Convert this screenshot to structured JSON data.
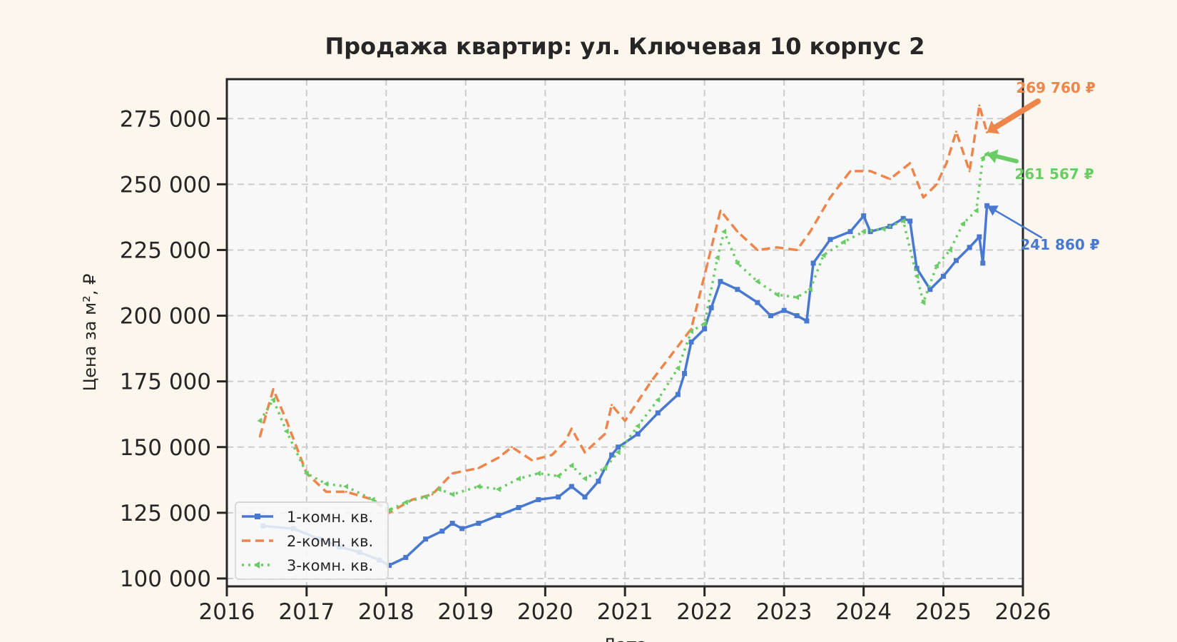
{
  "chart_data": {
    "type": "line",
    "title": "Продажа квартир: ул. Ключевая 10 корпус 2",
    "xlabel": "Дата",
    "ylabel": "Цена за м², ₽",
    "x_range": [
      "2016-01-01",
      "2026-01-01"
    ],
    "ylim": [
      97000,
      290000
    ],
    "x_ticks": [
      "2016",
      "2017",
      "2018",
      "2019",
      "2020",
      "2021",
      "2022",
      "2023",
      "2024",
      "2025",
      "2026"
    ],
    "y_ticks": [
      {
        "value": 100000,
        "label": "100 000"
      },
      {
        "value": 125000,
        "label": "125 000"
      },
      {
        "value": 150000,
        "label": "150 000"
      },
      {
        "value": 175000,
        "label": "175 000"
      },
      {
        "value": 200000,
        "label": "200 000"
      },
      {
        "value": 225000,
        "label": "225 000"
      },
      {
        "value": 250000,
        "label": "250 000"
      },
      {
        "value": 275000,
        "label": "275 000"
      }
    ],
    "grid": true,
    "legend_position": "lower-left",
    "series": [
      {
        "name": "1-комн. кв.",
        "color": "#4878d0",
        "style": "solid-square-markers",
        "points": [
          [
            "2016-06-15",
            120000
          ],
          [
            "2016-11-01",
            119000
          ],
          [
            "2017-03-01",
            115000
          ],
          [
            "2017-06-01",
            112000
          ],
          [
            "2017-09-01",
            110000
          ],
          [
            "2017-12-01",
            107000
          ],
          [
            "2018-01-15",
            105000
          ],
          [
            "2018-04-01",
            108000
          ],
          [
            "2018-07-01",
            115000
          ],
          [
            "2018-09-15",
            118000
          ],
          [
            "2018-11-01",
            121000
          ],
          [
            "2018-12-15",
            119000
          ],
          [
            "2019-03-01",
            121000
          ],
          [
            "2019-06-01",
            124000
          ],
          [
            "2019-09-01",
            127000
          ],
          [
            "2019-12-01",
            130000
          ],
          [
            "2020-03-01",
            131000
          ],
          [
            "2020-05-01",
            135000
          ],
          [
            "2020-07-01",
            131000
          ],
          [
            "2020-09-01",
            137000
          ],
          [
            "2020-11-01",
            147000
          ],
          [
            "2020-12-01",
            150000
          ],
          [
            "2021-03-01",
            155000
          ],
          [
            "2021-06-01",
            163000
          ],
          [
            "2021-09-01",
            170000
          ],
          [
            "2021-10-01",
            178000
          ],
          [
            "2021-11-01",
            190000
          ],
          [
            "2022-01-01",
            195000
          ],
          [
            "2022-02-01",
            203000
          ],
          [
            "2022-03-15",
            213000
          ],
          [
            "2022-06-01",
            210000
          ],
          [
            "2022-09-01",
            205000
          ],
          [
            "2022-11-01",
            200000
          ],
          [
            "2023-01-01",
            202000
          ],
          [
            "2023-03-01",
            200000
          ],
          [
            "2023-04-15",
            198000
          ],
          [
            "2023-05-15",
            220000
          ],
          [
            "2023-08-01",
            229000
          ],
          [
            "2023-11-01",
            232000
          ],
          [
            "2024-01-01",
            238000
          ],
          [
            "2024-02-01",
            232000
          ],
          [
            "2024-05-01",
            234000
          ],
          [
            "2024-07-01",
            237000
          ],
          [
            "2024-08-01",
            236000
          ],
          [
            "2024-09-01",
            218000
          ],
          [
            "2024-11-01",
            210000
          ],
          [
            "2025-01-01",
            215000
          ],
          [
            "2025-03-01",
            221000
          ],
          [
            "2025-05-01",
            226000
          ],
          [
            "2025-06-15",
            230000
          ],
          [
            "2025-07-01",
            220000
          ],
          [
            "2025-07-20",
            241860
          ]
        ]
      },
      {
        "name": "2-комн. кв.",
        "color": "#ee854a",
        "style": "dashed",
        "points": [
          [
            "2016-06-01",
            154000
          ],
          [
            "2016-07-01",
            163000
          ],
          [
            "2016-08-01",
            172000
          ],
          [
            "2016-10-01",
            160000
          ],
          [
            "2017-01-01",
            140000
          ],
          [
            "2017-04-01",
            133000
          ],
          [
            "2017-07-01",
            133000
          ],
          [
            "2017-11-01",
            130000
          ],
          [
            "2018-01-15",
            125000
          ],
          [
            "2018-05-01",
            130000
          ],
          [
            "2018-08-01",
            132000
          ],
          [
            "2018-11-01",
            140000
          ],
          [
            "2019-03-01",
            142000
          ],
          [
            "2019-06-01",
            146000
          ],
          [
            "2019-08-01",
            150000
          ],
          [
            "2019-11-01",
            145000
          ],
          [
            "2020-02-01",
            147000
          ],
          [
            "2020-04-01",
            152000
          ],
          [
            "2020-05-01",
            157000
          ],
          [
            "2020-07-01",
            148000
          ],
          [
            "2020-10-01",
            155000
          ],
          [
            "2020-11-01",
            166000
          ],
          [
            "2021-01-01",
            160000
          ],
          [
            "2021-05-01",
            175000
          ],
          [
            "2021-08-01",
            185000
          ],
          [
            "2021-11-01",
            195000
          ],
          [
            "2022-01-15",
            220000
          ],
          [
            "2022-03-15",
            240000
          ],
          [
            "2022-06-01",
            232000
          ],
          [
            "2022-09-01",
            225000
          ],
          [
            "2022-12-01",
            226000
          ],
          [
            "2023-03-01",
            225000
          ],
          [
            "2023-05-01",
            232000
          ],
          [
            "2023-08-01",
            245000
          ],
          [
            "2023-11-01",
            255000
          ],
          [
            "2024-02-01",
            255000
          ],
          [
            "2024-05-01",
            252000
          ],
          [
            "2024-08-01",
            258000
          ],
          [
            "2024-10-01",
            245000
          ],
          [
            "2024-12-01",
            250000
          ],
          [
            "2025-01-15",
            258000
          ],
          [
            "2025-03-01",
            270000
          ],
          [
            "2025-05-01",
            255000
          ],
          [
            "2025-06-15",
            280000
          ],
          [
            "2025-07-20",
            269760
          ]
        ]
      },
      {
        "name": "3-комн. кв.",
        "color": "#6acc64",
        "style": "dotted-triangle-markers",
        "points": [
          [
            "2016-06-01",
            160000
          ],
          [
            "2016-08-01",
            168000
          ],
          [
            "2016-10-01",
            156000
          ],
          [
            "2017-01-01",
            140000
          ],
          [
            "2017-04-01",
            136000
          ],
          [
            "2017-07-01",
            135000
          ],
          [
            "2017-11-01",
            130000
          ],
          [
            "2018-01-15",
            126000
          ],
          [
            "2018-04-01",
            129000
          ],
          [
            "2018-07-01",
            131000
          ],
          [
            "2018-09-01",
            134000
          ],
          [
            "2018-11-01",
            132000
          ],
          [
            "2019-03-01",
            135000
          ],
          [
            "2019-06-01",
            134000
          ],
          [
            "2019-09-01",
            138000
          ],
          [
            "2019-12-01",
            140000
          ],
          [
            "2020-03-01",
            139000
          ],
          [
            "2020-05-01",
            143000
          ],
          [
            "2020-07-01",
            138000
          ],
          [
            "2020-10-01",
            142000
          ],
          [
            "2020-12-01",
            148000
          ],
          [
            "2021-03-01",
            158000
          ],
          [
            "2021-06-01",
            168000
          ],
          [
            "2021-09-01",
            180000
          ],
          [
            "2021-11-01",
            194000
          ],
          [
            "2022-01-01",
            197000
          ],
          [
            "2022-03-01",
            222000
          ],
          [
            "2022-04-01",
            232000
          ],
          [
            "2022-06-01",
            220000
          ],
          [
            "2022-09-01",
            213000
          ],
          [
            "2022-12-01",
            208000
          ],
          [
            "2023-03-01",
            207000
          ],
          [
            "2023-05-01",
            210000
          ],
          [
            "2023-07-01",
            223000
          ],
          [
            "2023-10-01",
            228000
          ],
          [
            "2024-01-01",
            232000
          ],
          [
            "2024-04-01",
            233000
          ],
          [
            "2024-07-01",
            236000
          ],
          [
            "2024-09-01",
            215000
          ],
          [
            "2024-10-01",
            205000
          ],
          [
            "2024-12-01",
            219000
          ],
          [
            "2025-02-01",
            225000
          ],
          [
            "2025-04-01",
            235000
          ],
          [
            "2025-06-01",
            240000
          ],
          [
            "2025-07-01",
            260000
          ],
          [
            "2025-07-20",
            261567
          ]
        ]
      }
    ],
    "annotations": [
      {
        "series": "2-комн. кв.",
        "text": "269 760 ₽",
        "color": "#ee854a"
      },
      {
        "series": "3-комн. кв.",
        "text": "261 567 ₽",
        "color": "#6acc64"
      },
      {
        "series": "1-комн. кв.",
        "text": "241 860 ₽",
        "color": "#4878d0"
      }
    ]
  }
}
